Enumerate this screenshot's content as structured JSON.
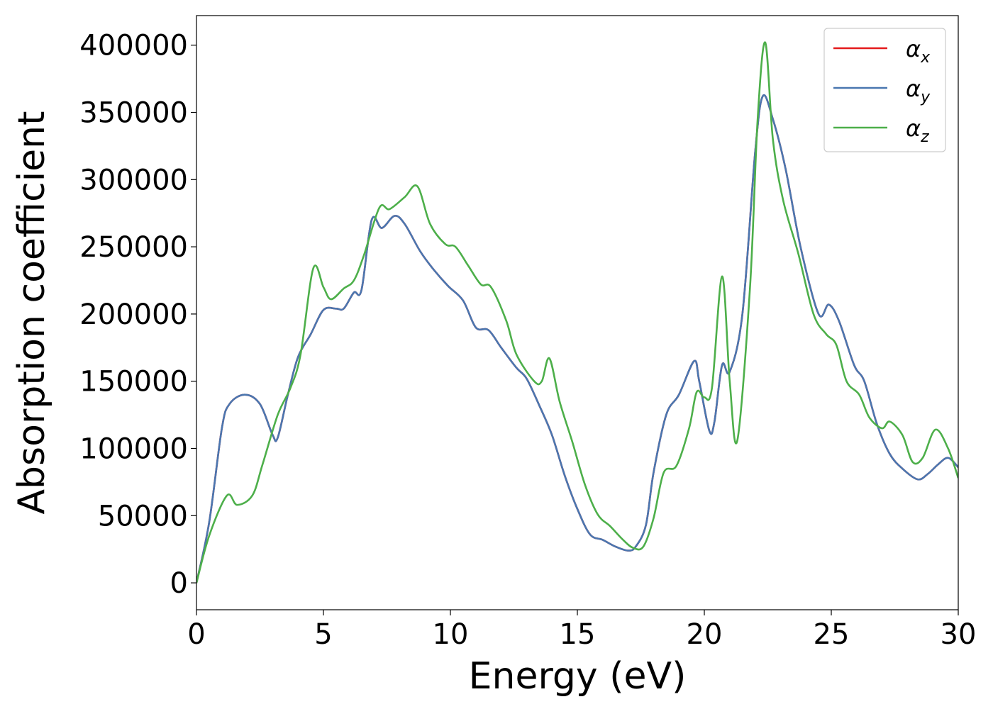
{
  "chart_data": {
    "type": "line",
    "title": "",
    "xlabel": "Energy (eV)",
    "ylabel": "Absorption coefficient",
    "xlim": [
      0,
      30
    ],
    "ylim": [
      -20000,
      422000
    ],
    "xticks": [
      0,
      5,
      10,
      15,
      20,
      25,
      30
    ],
    "xtick_labels": [
      "0",
      "5",
      "10",
      "15",
      "20",
      "25",
      "30"
    ],
    "yticks": [
      0,
      50000,
      100000,
      150000,
      200000,
      250000,
      300000,
      350000,
      400000
    ],
    "ytick_labels": [
      "0",
      "50000",
      "100000",
      "150000",
      "200000",
      "250000",
      "300000",
      "350000",
      "400000"
    ],
    "grid": false,
    "legend_position": "top-right",
    "series": [
      {
        "name": "α",
        "subscript": "x",
        "color": "#e41a1c",
        "x": [
          0,
          0.5,
          1.0,
          1.3,
          1.9,
          2.5,
          3.0,
          3.2,
          3.6,
          4.0,
          4.5,
          5.0,
          5.5,
          5.8,
          6.2,
          6.5,
          6.9,
          7.3,
          7.8,
          8.2,
          8.8,
          9.3,
          9.9,
          10.5,
          11.0,
          11.5,
          12.0,
          12.6,
          13.0,
          13.5,
          14.0,
          14.5,
          15.0,
          15.5,
          16.0,
          16.5,
          17.0,
          17.3,
          17.7,
          18.0,
          18.5,
          19.0,
          19.6,
          19.8,
          20.2,
          20.4,
          20.7,
          21.0,
          21.5,
          22.0,
          22.3,
          22.7,
          23.2,
          23.8,
          24.5,
          24.9,
          25.3,
          25.9,
          26.3,
          26.8,
          27.3,
          27.8,
          28.4,
          28.8,
          29.2,
          29.6,
          30.0
        ],
        "y": [
          0,
          45000,
          115000,
          133000,
          140000,
          133000,
          110000,
          108000,
          140000,
          168000,
          185000,
          203000,
          204000,
          204000,
          216000,
          218000,
          270000,
          264000,
          273000,
          267000,
          247000,
          234000,
          221000,
          210000,
          190000,
          188000,
          175000,
          160000,
          152000,
          132000,
          110000,
          80000,
          55000,
          36000,
          32000,
          27000,
          24000,
          27000,
          43000,
          82000,
          125000,
          140000,
          165000,
          150000,
          113000,
          120000,
          162000,
          157000,
          200000,
          320000,
          362000,
          345000,
          308000,
          249000,
          200000,
          207000,
          195000,
          162000,
          150000,
          118000,
          96000,
          85000,
          77000,
          81000,
          88000,
          93000,
          86000
        ]
      },
      {
        "name": "α",
        "subscript": "y",
        "color": "#4a77b0",
        "x": [
          0,
          0.5,
          1.0,
          1.3,
          1.9,
          2.5,
          3.0,
          3.2,
          3.6,
          4.0,
          4.5,
          5.0,
          5.5,
          5.8,
          6.2,
          6.5,
          6.9,
          7.3,
          7.8,
          8.2,
          8.8,
          9.3,
          9.9,
          10.5,
          11.0,
          11.5,
          12.0,
          12.6,
          13.0,
          13.5,
          14.0,
          14.5,
          15.0,
          15.5,
          16.0,
          16.5,
          17.0,
          17.3,
          17.7,
          18.0,
          18.5,
          19.0,
          19.6,
          19.8,
          20.2,
          20.4,
          20.7,
          21.0,
          21.5,
          22.0,
          22.3,
          22.7,
          23.2,
          23.8,
          24.5,
          24.9,
          25.3,
          25.9,
          26.3,
          26.8,
          27.3,
          27.8,
          28.4,
          28.8,
          29.2,
          29.6,
          30.0
        ],
        "y": [
          0,
          45000,
          115000,
          133000,
          140000,
          133000,
          110000,
          108000,
          140000,
          168000,
          185000,
          203000,
          204000,
          204000,
          216000,
          218000,
          270000,
          264000,
          273000,
          267000,
          247000,
          234000,
          221000,
          210000,
          190000,
          188000,
          175000,
          160000,
          152000,
          132000,
          110000,
          80000,
          55000,
          36000,
          32000,
          27000,
          24000,
          27000,
          43000,
          82000,
          125000,
          140000,
          165000,
          150000,
          113000,
          120000,
          162000,
          157000,
          200000,
          320000,
          362000,
          345000,
          308000,
          249000,
          200000,
          207000,
          195000,
          162000,
          150000,
          118000,
          96000,
          85000,
          77000,
          81000,
          88000,
          93000,
          86000
        ]
      },
      {
        "name": "α",
        "subscript": "z",
        "color": "#4daf4a",
        "x": [
          0,
          0.5,
          1.2,
          1.6,
          2.2,
          2.6,
          3.2,
          3.7,
          4.1,
          4.6,
          5.0,
          5.3,
          5.8,
          6.2,
          6.6,
          7.2,
          7.6,
          8.2,
          8.7,
          9.2,
          9.8,
          10.2,
          10.7,
          11.2,
          11.6,
          12.2,
          12.6,
          13.3,
          13.6,
          13.9,
          14.3,
          14.8,
          15.3,
          15.8,
          16.3,
          16.8,
          17.2,
          17.6,
          18.0,
          18.4,
          18.9,
          19.4,
          19.7,
          20.0,
          20.3,
          20.7,
          21.0,
          21.3,
          21.8,
          22.1,
          22.4,
          22.7,
          23.1,
          23.7,
          24.3,
          24.8,
          25.2,
          25.6,
          26.1,
          26.5,
          27.0,
          27.3,
          27.8,
          28.2,
          28.6,
          29.1,
          29.6,
          30.0
        ],
        "y": [
          0,
          35000,
          65000,
          58000,
          65000,
          88000,
          125000,
          145000,
          170000,
          234000,
          220000,
          211000,
          219000,
          225000,
          244000,
          279000,
          278000,
          287000,
          295000,
          267000,
          252000,
          250000,
          236000,
          222000,
          220000,
          195000,
          170000,
          150000,
          150000,
          167000,
          135000,
          105000,
          73000,
          51000,
          42000,
          32000,
          26000,
          27000,
          48000,
          82000,
          87000,
          115000,
          142000,
          138000,
          145000,
          228000,
          150000,
          106000,
          220000,
          345000,
          402000,
          330000,
          285000,
          245000,
          200000,
          185000,
          177000,
          150000,
          140000,
          123000,
          115000,
          120000,
          110000,
          90000,
          93000,
          114000,
          100000,
          78000
        ]
      }
    ]
  }
}
